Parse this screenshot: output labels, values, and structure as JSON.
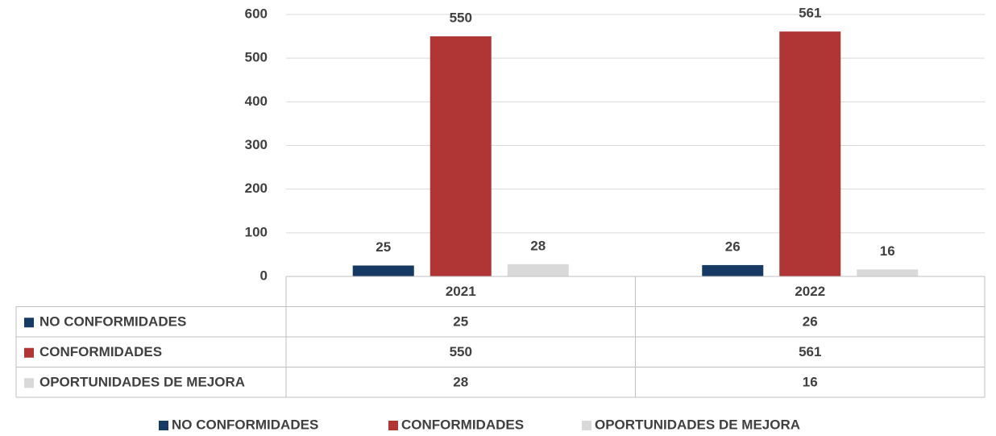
{
  "chart_data": {
    "type": "bar",
    "categories": [
      "2021",
      "2022"
    ],
    "series": [
      {
        "name": "NO CONFORMIDADES",
        "color": "#173a64",
        "values": [
          25,
          26
        ]
      },
      {
        "name": "CONFORMIDADES",
        "color": "#b03535",
        "values": [
          550,
          561
        ]
      },
      {
        "name": "OPORTUNIDADES DE MEJORA",
        "color": "#d9d9d9",
        "values": [
          28,
          16
        ]
      }
    ],
    "ylim": [
      0,
      600
    ],
    "yticks": [
      0,
      100,
      200,
      300,
      400,
      500,
      600
    ],
    "grid": true,
    "legend": "bottom"
  }
}
